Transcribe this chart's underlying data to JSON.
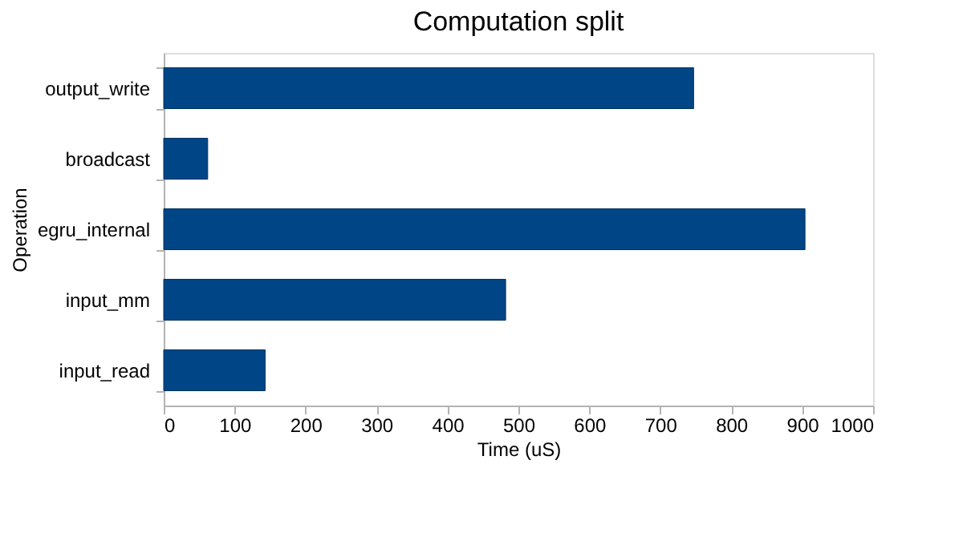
{
  "chart_data": {
    "type": "bar",
    "orientation": "horizontal",
    "title": "Computation split",
    "xlabel": "Time (uS)",
    "ylabel": "Operation",
    "categories": [
      "output_write",
      "broadcast",
      "egru_internal",
      "input_mm",
      "input_read"
    ],
    "series": [
      {
        "color": "#004586",
        "values": [
          747,
          62,
          904,
          482,
          143
        ]
      }
    ],
    "xlim": [
      0,
      1000
    ],
    "xticks": [
      0,
      100,
      200,
      300,
      400,
      500,
      600,
      700,
      800,
      900,
      1000
    ],
    "grid": false,
    "legend": false
  }
}
